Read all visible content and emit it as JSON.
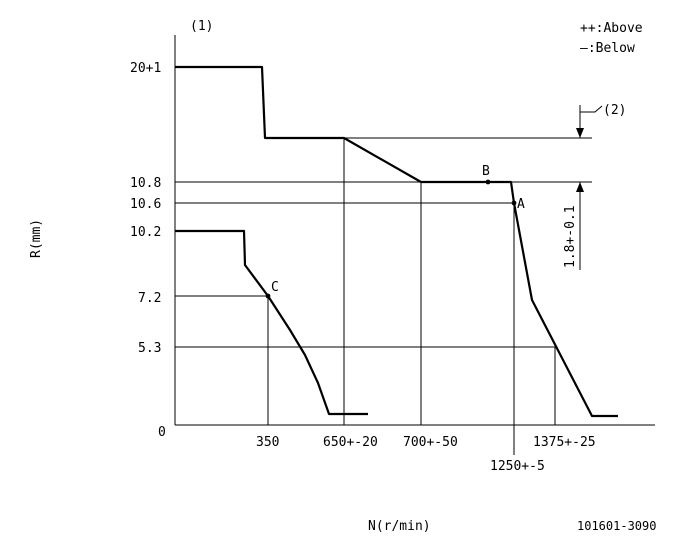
{
  "header": {
    "diagram_ref": "(1)",
    "legend_above": "++:Above",
    "legend_below": "—:Below",
    "ref2": "(2)",
    "dim_label": "1.8+-0.1"
  },
  "axes": {
    "y_label": "R(mm)",
    "x_label": "N(r/min)",
    "y_ticks": [
      "20+1",
      "10.8",
      "10.6",
      "10.2",
      "7.2",
      "5.3",
      "0"
    ],
    "x_ticks": [
      "350",
      "650+-20",
      "700+-50",
      "1250+-5",
      "1375+-25"
    ]
  },
  "points": [
    "A",
    "B",
    "C"
  ],
  "footer": {
    "part_number": "101601-3090"
  }
}
